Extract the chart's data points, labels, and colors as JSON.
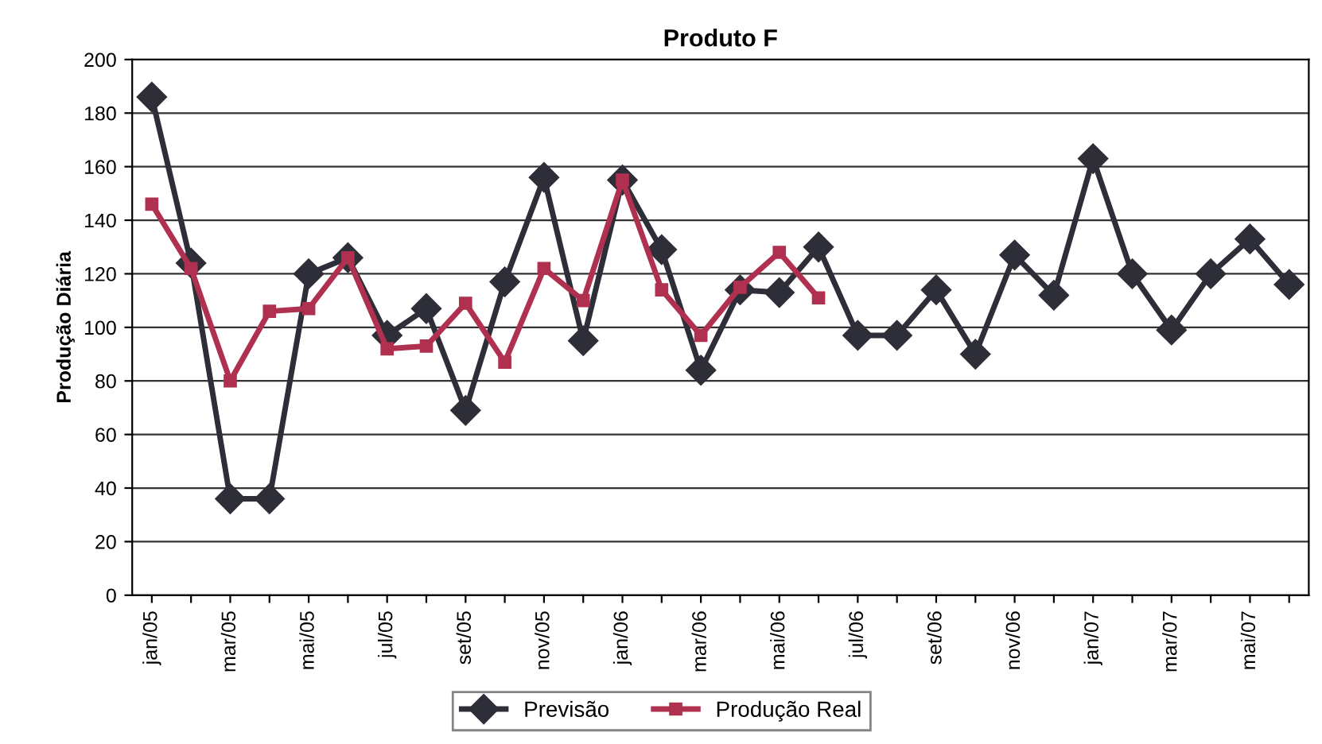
{
  "chart_data": {
    "type": "line",
    "title": "Produto F",
    "ylabel": "Produção Diária",
    "categories": [
      "jan/05",
      null,
      "mar/05",
      null,
      "mai/05",
      null,
      "jul/05",
      null,
      "set/05",
      null,
      "nov/05",
      null,
      "jan/06",
      null,
      "mar/06",
      null,
      "mai/06",
      null,
      "jul/06",
      null,
      "set/06",
      null,
      "nov/06",
      null,
      "jan/07",
      null,
      "mar/07",
      null,
      "mai/07",
      null
    ],
    "series": [
      {
        "name": "Previsão",
        "color": "#2e2e38",
        "marker": "diamond",
        "values": [
          186,
          124,
          36,
          36,
          120,
          126,
          97,
          107,
          69,
          117,
          156,
          95,
          155,
          129,
          84,
          114,
          113,
          130,
          97,
          97,
          114,
          90,
          127,
          112,
          163,
          120,
          99,
          120,
          133,
          116
        ]
      },
      {
        "name": "Produção Real",
        "color": "#b03050",
        "marker": "square",
        "values": [
          146,
          122,
          80,
          106,
          107,
          126,
          92,
          93,
          109,
          87,
          122,
          110,
          155,
          114,
          97,
          115,
          128,
          111,
          null,
          null,
          null,
          null,
          null,
          null,
          null,
          null,
          null,
          null,
          null,
          null
        ]
      }
    ],
    "ylim": [
      0,
      200
    ],
    "yticks": [
      0,
      20,
      40,
      60,
      80,
      100,
      120,
      140,
      160,
      180,
      200
    ],
    "grid": "y",
    "legend": "bottom",
    "line_style": "solid"
  }
}
